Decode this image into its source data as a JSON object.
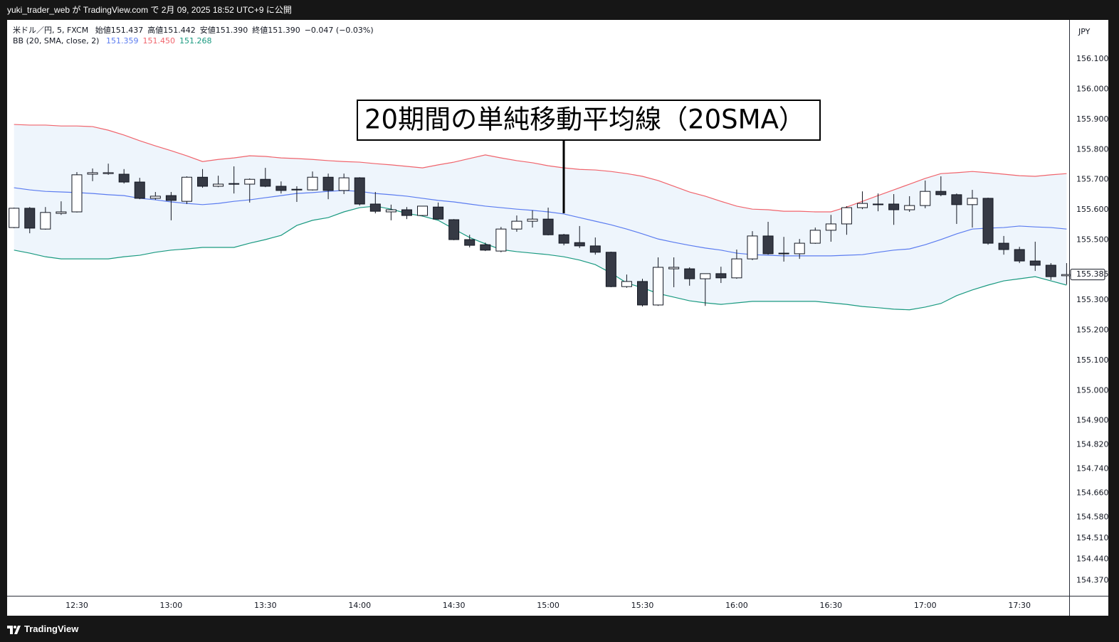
{
  "header": {
    "text": "yuki_trader_web が TradingView.com で 2月 09, 2025 18:52 UTC+9 に公開"
  },
  "footer": {
    "text": "TradingView"
  },
  "chart_data": {
    "type": "candlestick",
    "legend": {
      "symbol": "米ドル／円, 5, FXCM",
      "ohlc": [
        "始値151.437",
        "高値151.442",
        "安値151.390",
        "終値151.390"
      ],
      "change": "−0.047 (−0.03%)",
      "indicator": "BB (20, SMA, close, 2)"
    },
    "annotation": "20期間の単純移動平均線（20SMA）",
    "currency": "JPY",
    "last_price": 155.385,
    "up_color": "#ffffff",
    "down_color": "#363a45",
    "band_fill": "#eef5fc",
    "ylim": [
      154.319,
      156.23
    ],
    "yticks": [
      {
        "value": 156.1,
        "label": "156.100"
      },
      {
        "value": 156.0,
        "label": "156.000"
      },
      {
        "value": 155.9,
        "label": "155.900"
      },
      {
        "value": 155.8,
        "label": "155.800"
      },
      {
        "value": 155.7,
        "label": "155.700"
      },
      {
        "value": 155.6,
        "label": "155.600"
      },
      {
        "value": 155.5,
        "label": "155.500"
      },
      {
        "value": 155.3,
        "label": "155.300"
      },
      {
        "value": 155.2,
        "label": "155.200"
      },
      {
        "value": 155.1,
        "label": "155.100"
      },
      {
        "value": 155.0,
        "label": "155.000"
      },
      {
        "value": 154.9,
        "label": "154.900"
      },
      {
        "value": 154.82,
        "label": "154.820"
      },
      {
        "value": 154.74,
        "label": "154.740"
      },
      {
        "value": 154.66,
        "label": "154.660"
      },
      {
        "value": 154.58,
        "label": "154.580"
      },
      {
        "value": 154.51,
        "label": "154.510"
      },
      {
        "value": 154.44,
        "label": "154.440"
      },
      {
        "value": 154.37,
        "label": "154.370"
      }
    ],
    "categories": [
      null,
      null,
      null,
      null,
      "12:30",
      null,
      null,
      null,
      null,
      null,
      "13:00",
      null,
      null,
      null,
      null,
      null,
      "13:30",
      null,
      null,
      null,
      null,
      null,
      "14:00",
      null,
      null,
      null,
      null,
      null,
      "14:30",
      null,
      null,
      null,
      null,
      null,
      "15:00",
      null,
      null,
      null,
      null,
      null,
      "15:30",
      null,
      null,
      null,
      null,
      null,
      "16:00",
      null,
      null,
      null,
      null,
      null,
      "16:30",
      null,
      null,
      null,
      null,
      null,
      "17:00",
      null,
      null,
      null,
      null,
      null,
      "17:30",
      null,
      null,
      null
    ],
    "open": [
      155.541,
      155.605,
      155.536,
      155.588,
      155.593,
      155.718,
      155.72,
      155.718,
      155.692,
      155.638,
      155.647,
      155.628,
      155.708,
      155.678,
      155.685,
      155.685,
      155.701,
      155.678,
      155.668,
      155.666,
      155.708,
      155.664,
      155.706,
      155.619,
      155.593,
      155.6,
      155.581,
      155.609,
      155.567,
      155.501,
      155.484,
      155.463,
      155.536,
      155.562,
      155.569,
      155.517,
      155.491,
      155.48,
      155.459,
      155.345,
      155.362,
      155.284,
      155.404,
      155.404,
      155.371,
      155.388,
      155.374,
      155.437,
      155.513,
      155.454,
      155.454,
      155.489,
      155.532,
      155.553,
      155.607,
      155.619,
      155.619,
      155.6,
      155.614,
      155.661,
      155.65,
      155.617,
      155.638,
      155.489,
      155.468,
      155.43,
      155.416,
      155.381
    ],
    "high": [
      155.607,
      155.609,
      155.609,
      155.628,
      155.725,
      155.737,
      155.753,
      155.735,
      155.706,
      155.659,
      155.659,
      155.711,
      155.735,
      155.713,
      155.744,
      155.704,
      155.739,
      155.694,
      155.678,
      155.727,
      155.72,
      155.72,
      155.708,
      155.659,
      155.617,
      155.609,
      155.612,
      155.624,
      155.569,
      155.517,
      155.491,
      155.543,
      155.581,
      155.598,
      155.607,
      155.52,
      155.546,
      155.508,
      155.461,
      155.385,
      155.371,
      155.442,
      155.442,
      155.409,
      155.388,
      155.411,
      155.468,
      155.529,
      155.56,
      155.51,
      155.503,
      155.541,
      155.583,
      155.612,
      155.661,
      155.654,
      155.652,
      155.645,
      155.697,
      155.711,
      155.654,
      155.666,
      155.64,
      155.513,
      155.477,
      155.494,
      155.423,
      155.423
    ],
    "low": [
      155.539,
      155.522,
      155.534,
      155.583,
      155.591,
      155.695,
      155.716,
      155.687,
      155.635,
      155.633,
      155.565,
      155.619,
      155.673,
      155.675,
      155.654,
      155.624,
      155.675,
      155.654,
      155.626,
      155.664,
      155.635,
      155.652,
      155.614,
      155.588,
      155.565,
      155.569,
      155.579,
      155.567,
      155.499,
      155.475,
      155.463,
      155.459,
      155.527,
      155.541,
      155.515,
      155.482,
      155.473,
      155.451,
      155.343,
      155.341,
      155.279,
      155.281,
      155.343,
      155.348,
      155.281,
      155.357,
      155.371,
      155.433,
      155.451,
      155.428,
      155.437,
      155.487,
      155.494,
      155.517,
      155.602,
      155.595,
      155.55,
      155.593,
      155.605,
      155.645,
      155.553,
      155.541,
      155.484,
      155.451,
      155.423,
      155.397,
      155.367,
      155.352
    ],
    "close": [
      155.605,
      155.539,
      155.591,
      155.593,
      155.716,
      155.723,
      155.723,
      155.692,
      155.638,
      155.645,
      155.631,
      155.708,
      155.678,
      155.685,
      155.687,
      155.701,
      155.678,
      155.664,
      155.666,
      155.708,
      155.664,
      155.706,
      155.619,
      155.595,
      155.6,
      155.581,
      155.612,
      155.569,
      155.501,
      155.482,
      155.466,
      155.536,
      155.562,
      155.569,
      155.517,
      155.489,
      155.48,
      155.459,
      155.345,
      155.362,
      155.284,
      155.409,
      155.409,
      155.371,
      155.388,
      155.374,
      155.437,
      155.513,
      155.454,
      155.456,
      155.489,
      155.532,
      155.553,
      155.607,
      155.621,
      155.617,
      155.6,
      155.614,
      155.661,
      155.65,
      155.617,
      155.638,
      155.489,
      155.468,
      155.43,
      155.416,
      155.378,
      155.385
    ],
    "overlays": [
      {
        "color": "#5b7cf0",
        "readout": "151.359",
        "values": [
          155.673,
          155.666,
          155.661,
          155.659,
          155.657,
          155.654,
          155.65,
          155.647,
          155.638,
          155.633,
          155.626,
          155.621,
          155.617,
          155.621,
          155.628,
          155.633,
          155.64,
          155.647,
          155.654,
          155.657,
          155.661,
          155.664,
          155.661,
          155.654,
          155.65,
          155.645,
          155.638,
          155.631,
          155.626,
          155.619,
          155.612,
          155.607,
          155.602,
          155.598,
          155.593,
          155.586,
          155.574,
          155.562,
          155.55,
          155.536,
          155.52,
          155.503,
          155.492,
          155.482,
          155.473,
          155.466,
          155.456,
          155.451,
          155.449,
          155.447,
          155.447,
          155.447,
          155.447,
          155.449,
          155.451,
          155.459,
          155.466,
          155.47,
          155.484,
          155.501,
          155.52,
          155.536,
          155.539,
          155.541,
          155.546,
          155.543,
          155.541,
          155.536
        ]
      },
      {
        "color": "#f0646c",
        "readout": "151.450",
        "values": [
          155.883,
          155.881,
          155.881,
          155.878,
          155.878,
          155.876,
          155.864,
          155.848,
          155.829,
          155.812,
          155.796,
          155.779,
          155.76,
          155.767,
          155.772,
          155.779,
          155.777,
          155.772,
          155.77,
          155.767,
          155.763,
          155.76,
          155.758,
          155.753,
          155.749,
          155.744,
          155.739,
          155.749,
          155.758,
          155.77,
          155.782,
          155.772,
          155.763,
          155.756,
          155.746,
          155.739,
          155.734,
          155.732,
          155.727,
          155.72,
          155.711,
          155.697,
          155.678,
          155.659,
          155.645,
          155.628,
          155.612,
          155.602,
          155.6,
          155.595,
          155.595,
          155.593,
          155.593,
          155.609,
          155.628,
          155.647,
          155.666,
          155.685,
          155.704,
          155.72,
          155.723,
          155.727,
          155.723,
          155.718,
          155.713,
          155.711,
          155.716,
          155.72
        ]
      },
      {
        "color": "#1a9a80",
        "readout": "151.268",
        "values": [
          155.466,
          155.456,
          155.444,
          155.437,
          155.437,
          155.437,
          155.437,
          155.444,
          155.449,
          155.459,
          155.466,
          155.47,
          155.475,
          155.475,
          155.475,
          155.489,
          155.501,
          155.515,
          155.548,
          155.565,
          155.574,
          155.593,
          155.607,
          155.612,
          155.602,
          155.588,
          155.579,
          155.565,
          155.536,
          155.508,
          155.487,
          155.468,
          155.461,
          155.456,
          155.451,
          155.444,
          155.433,
          155.418,
          155.39,
          155.357,
          155.341,
          155.322,
          155.31,
          155.298,
          155.291,
          155.286,
          155.291,
          155.296,
          155.296,
          155.296,
          155.296,
          155.296,
          155.291,
          155.286,
          155.279,
          155.275,
          155.27,
          155.268,
          155.277,
          155.289,
          155.315,
          155.334,
          155.35,
          155.364,
          155.371,
          155.378,
          155.364,
          155.35
        ]
      }
    ]
  }
}
